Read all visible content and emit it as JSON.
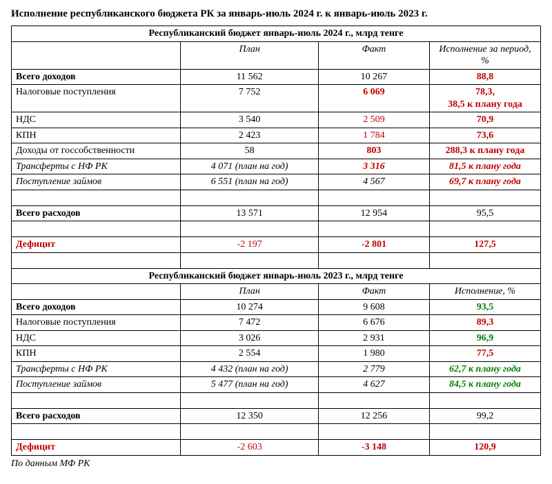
{
  "title": "Исполнение республиканского бюджета РК за январь-июль 2024 г. к январь-июль 2023 г.",
  "footnote": "По данным МФ РК",
  "colors": {
    "red": "#c00000",
    "green": "#008000",
    "border": "#000000",
    "background": "#ffffff",
    "text": "#000000"
  },
  "typography": {
    "family": "Times New Roman",
    "base_size_pt": 11,
    "title_size_pt": 12
  },
  "columns": {
    "widths_pct": [
      32,
      26,
      21,
      21
    ]
  },
  "section2024": {
    "header": "Республиканский бюджет январь-июль 2024 г., млрд тенге",
    "cols": {
      "plan": "План",
      "fact": "Факт",
      "exec": "Исполнение за период, %"
    },
    "rows": {
      "total_income": {
        "name": "Всего доходов",
        "plan": "11 562",
        "fact": "10 267",
        "exec": "88,8"
      },
      "tax": {
        "name": "Налоговые поступления",
        "plan": "7 752",
        "fact": "6 069",
        "exec": "78,3,\n38,5 к плану года"
      },
      "nds": {
        "name": "НДС",
        "plan": "3 540",
        "fact": "2 509",
        "exec": "70,9"
      },
      "kpn": {
        "name": "КПН",
        "plan": "2 423",
        "fact": "1 784",
        "exec": "73,6"
      },
      "gov_prop": {
        "name": "Доходы от госсобственности",
        "plan": "58",
        "fact": "803",
        "exec": "288,3 к плану года"
      },
      "transfers": {
        "name": "Трансферты с НФ РК",
        "plan": "4 071 (план на год)",
        "fact": "3 316",
        "exec": "81,5 к плану года"
      },
      "loans": {
        "name": "Поступление займов",
        "plan": "6 551 (план на год)",
        "fact": "4 567",
        "exec": "69,7 к плану года"
      },
      "total_spend": {
        "name": "Всего расходов",
        "plan": "13 571",
        "fact": "12 954",
        "exec": "95,5"
      },
      "deficit": {
        "name": "Дефицит",
        "plan": "-2 197",
        "fact": "-2 801",
        "exec": "127,5"
      }
    }
  },
  "section2023": {
    "header": "Республиканский бюджет январь-июль 2023 г., млрд тенге",
    "cols": {
      "plan": "План",
      "fact": "Факт",
      "exec": "Исполнение, %"
    },
    "rows": {
      "total_income": {
        "name": "Всего доходов",
        "plan": "10 274",
        "fact": "9 608",
        "exec": "93,5"
      },
      "tax": {
        "name": "Налоговые поступления",
        "plan": "7 472",
        "fact": "6 676",
        "exec": "89,3"
      },
      "nds": {
        "name": "НДС",
        "plan": "3 026",
        "fact": "2 931",
        "exec": "96,9"
      },
      "kpn": {
        "name": "КПН",
        "plan": "2 554",
        "fact": "1 980",
        "exec": "77,5"
      },
      "transfers": {
        "name": "Трансферты с НФ РК",
        "plan": "4 432 (план на год)",
        "fact": "2 779",
        "exec": "62,7 к плану года"
      },
      "loans": {
        "name": "Поступление займов",
        "plan": "5 477 (план на год)",
        "fact": "4 627",
        "exec": "84,5 к плану года"
      },
      "total_spend": {
        "name": "Всего расходов",
        "plan": "12 350",
        "fact": "12 256",
        "exec": "99,2"
      },
      "deficit": {
        "name": "Дефицит",
        "plan": "-2 603",
        "fact": "-3 148",
        "exec": "120,9"
      }
    }
  }
}
